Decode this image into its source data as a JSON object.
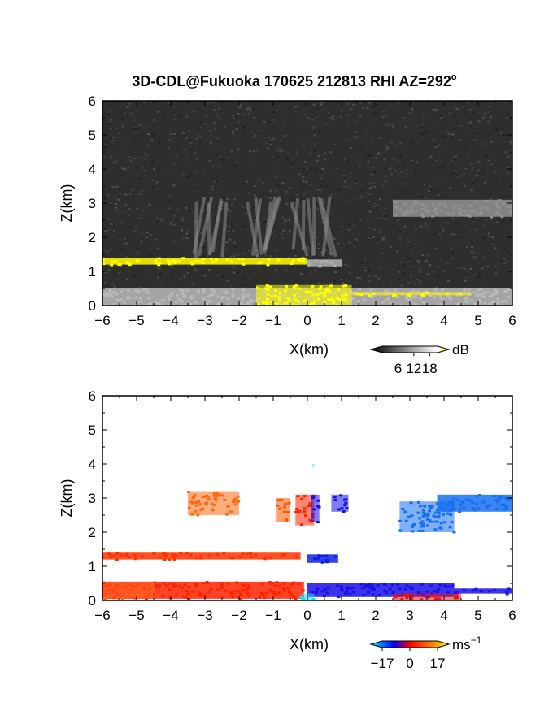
{
  "figure": {
    "title_main": "3D-CDL@Fukuoka 170625 212813 RHI AZ=292",
    "title_degree": "o"
  },
  "chart_data": [
    {
      "type": "heatmap",
      "name": "reflectivity",
      "xlabel": "X(km)",
      "ylabel": "Z(km)",
      "xlim": [
        -6,
        6
      ],
      "ylim": [
        0,
        6
      ],
      "xticks": [
        -6,
        -5,
        -4,
        -3,
        -2,
        -1,
        0,
        1,
        2,
        3,
        4,
        5,
        6
      ],
      "yticks": [
        0,
        1,
        2,
        3,
        4,
        5,
        6
      ],
      "colorbar": {
        "unit": "dB",
        "ticks": [
          6,
          12,
          18
        ],
        "range": [
          0,
          21
        ]
      },
      "grid": false,
      "background": "noisy dark-grey returns over the whole domain",
      "features": [
        {
          "kind": "layer",
          "x": [
            -6,
            0
          ],
          "z": [
            1.2,
            1.4
          ],
          "level": "high",
          "color": "#ffff00"
        },
        {
          "kind": "layer",
          "x": [
            0,
            1
          ],
          "z": [
            1.15,
            1.35
          ],
          "level": "medium",
          "color": "#b0b0b0"
        },
        {
          "kind": "surface",
          "x": [
            -6,
            6
          ],
          "z": [
            0,
            0.5
          ],
          "level": "medium",
          "color": "#b8b8b8"
        },
        {
          "kind": "patch",
          "x": [
            -1.5,
            1.3
          ],
          "z": [
            0,
            0.6
          ],
          "level": "high",
          "color": "#ffff00"
        },
        {
          "kind": "patch",
          "x": [
            1.3,
            4.8
          ],
          "z": [
            0.3,
            0.4
          ],
          "level": "high",
          "color": "#ffff00"
        },
        {
          "kind": "streaks",
          "x": [
            -3.5,
            1.2
          ],
          "z": [
            1.4,
            3.2
          ],
          "level": "low",
          "color": "#8a8a8a"
        },
        {
          "kind": "layer",
          "x": [
            2.5,
            6
          ],
          "z": [
            2.6,
            3.1
          ],
          "level": "low",
          "color": "#909090"
        }
      ]
    },
    {
      "type": "heatmap",
      "name": "doppler-velocity",
      "xlabel": "X(km)",
      "ylabel": "Z(km)",
      "xlim": [
        -6,
        6
      ],
      "ylim": [
        0,
        6
      ],
      "xticks": [
        -6,
        -5,
        -4,
        -3,
        -2,
        -1,
        0,
        1,
        2,
        3,
        4,
        5,
        6
      ],
      "yticks": [
        0,
        1,
        2,
        3,
        4,
        5,
        6
      ],
      "colorbar": {
        "unit": "ms",
        "unit_exponent": "−1",
        "ticks": [
          "−17",
          "0",
          "17"
        ],
        "range": [
          -17,
          17
        ]
      },
      "grid": false,
      "features": [
        {
          "kind": "layer",
          "x": [
            -6,
            -0.2
          ],
          "z": [
            1.2,
            1.4
          ],
          "velocity": 3,
          "color": "#ff3300"
        },
        {
          "kind": "layer",
          "x": [
            0,
            0.9
          ],
          "z": [
            1.1,
            1.35
          ],
          "velocity": -12,
          "color": "#1020e0"
        },
        {
          "kind": "layer",
          "x": [
            -6,
            -0.1
          ],
          "z": [
            0.05,
            0.55
          ],
          "velocity": 3,
          "color": "#ff2200"
        },
        {
          "kind": "layer",
          "x": [
            0,
            4.3
          ],
          "z": [
            0.1,
            0.5
          ],
          "velocity": -12,
          "color": "#1a10e8"
        },
        {
          "kind": "layer",
          "x": [
            4.3,
            6
          ],
          "z": [
            0.2,
            0.35
          ],
          "velocity": -12,
          "color": "#1a10e8"
        },
        {
          "kind": "patch",
          "x": [
            -0.35,
            0.2
          ],
          "z": [
            2.2,
            3.1
          ],
          "velocity": 4,
          "color": "#ff2200"
        },
        {
          "kind": "patch",
          "x": [
            0.1,
            0.35
          ],
          "z": [
            2.3,
            3.1
          ],
          "velocity": -12,
          "color": "#1a10e8"
        },
        {
          "kind": "patch",
          "x": [
            0.7,
            1.2
          ],
          "z": [
            2.6,
            3.1
          ],
          "velocity": -12,
          "color": "#1a10e8"
        },
        {
          "kind": "patch",
          "x": [
            -3.5,
            -2
          ],
          "z": [
            2.5,
            3.2
          ],
          "velocity": 8,
          "color": "#ff6a10"
        },
        {
          "kind": "patch",
          "x": [
            -0.9,
            -0.5
          ],
          "z": [
            2.3,
            3.0
          ],
          "velocity": 8,
          "color": "#ff5500"
        },
        {
          "kind": "layer",
          "x": [
            3.8,
            6
          ],
          "z": [
            2.6,
            3.1
          ],
          "velocity": -8,
          "color": "#1870f0"
        },
        {
          "kind": "patch",
          "x": [
            2.7,
            4.3
          ],
          "z": [
            2.0,
            2.9
          ],
          "velocity": -8,
          "color": "#1870f0"
        },
        {
          "kind": "patch",
          "x": [
            -6,
            -4.5
          ],
          "z": [
            0.05,
            0.55
          ],
          "velocity": 8,
          "color": "#ff6020"
        },
        {
          "kind": "patch",
          "x": [
            2.5,
            4.5
          ],
          "z": [
            0.0,
            0.2
          ],
          "velocity": 4,
          "color": "#ee1111"
        },
        {
          "kind": "patch",
          "x": [
            -0.2,
            0.2
          ],
          "z": [
            0.0,
            0.2
          ],
          "velocity": -14,
          "color": "#20d8f0"
        },
        {
          "kind": "point",
          "x": [
            0.15,
            0.2
          ],
          "z": [
            3.9,
            4.0
          ],
          "velocity": -14,
          "color": "#20d8f0"
        }
      ]
    }
  ]
}
